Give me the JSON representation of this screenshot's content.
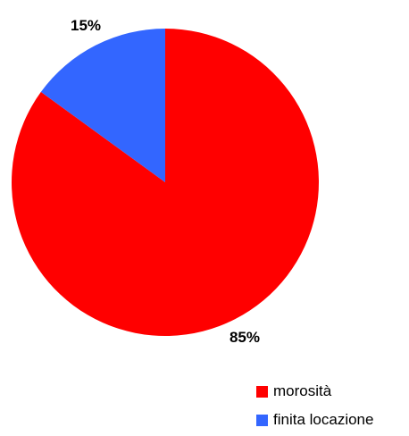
{
  "chart_data": {
    "type": "pie",
    "categories": [
      "morosità",
      "finita locazione"
    ],
    "values": [
      85,
      15
    ],
    "data_labels": [
      "85%",
      "15%"
    ],
    "colors": [
      "#ff0000",
      "#3366ff"
    ],
    "start": "top, clockwise",
    "legend": "bottom-right"
  }
}
